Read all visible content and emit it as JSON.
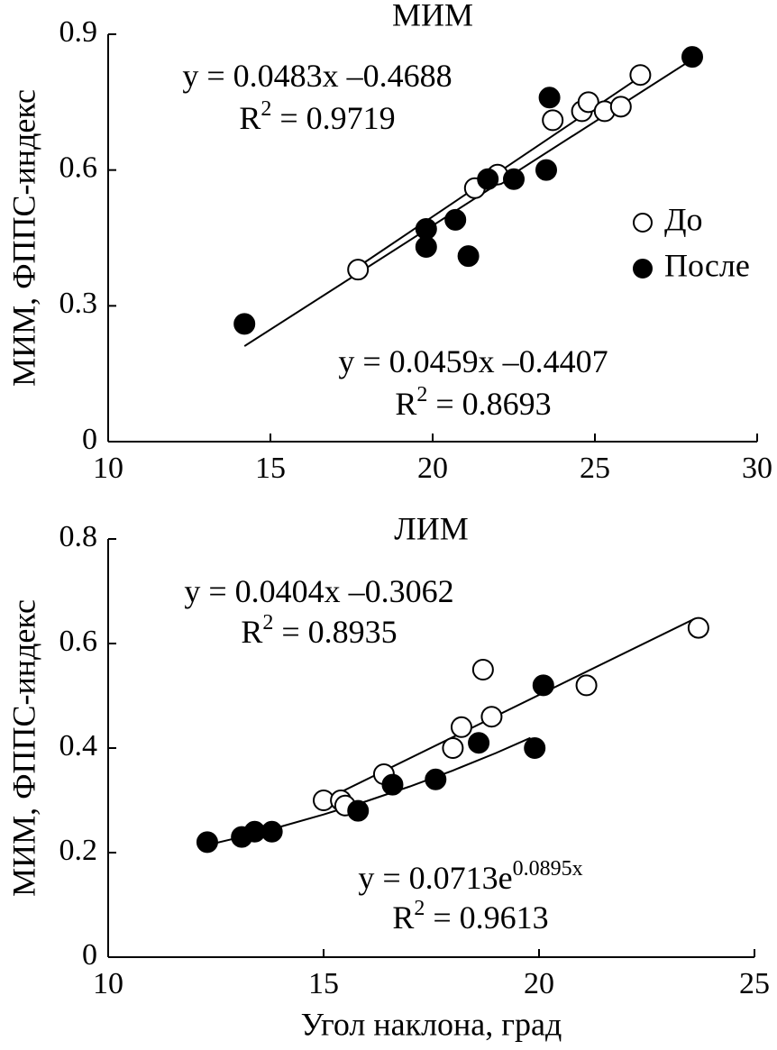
{
  "chart_data": [
    {
      "type": "scatter",
      "title": "МИМ",
      "ylabel": "МИМ, ФППС-индекс",
      "xlim": [
        10,
        30
      ],
      "xticks": [
        10,
        15,
        20,
        25,
        30
      ],
      "ylim": [
        0,
        0.9
      ],
      "yticks": [
        0,
        0.3,
        0.6,
        0.9
      ],
      "legend": true,
      "legend_position": "right",
      "series": [
        {
          "name": "До",
          "color": "#000000",
          "marker_fill": "#ffffff",
          "x": [
            17.7,
            21.3,
            22.0,
            23.7,
            24.6,
            24.8,
            25.3,
            25.8,
            26.4
          ],
          "values": [
            0.38,
            0.56,
            0.59,
            0.71,
            0.73,
            0.75,
            0.73,
            0.74,
            0.81
          ],
          "trend": {
            "x": [
              17.8,
              26.4
            ],
            "values": [
              0.391,
              0.806
            ]
          }
        },
        {
          "name": "После",
          "color": "#000000",
          "marker_fill": "#000000",
          "x": [
            14.2,
            19.8,
            19.8,
            20.7,
            21.1,
            21.7,
            22.5,
            23.5,
            23.6,
            28.0
          ],
          "values": [
            0.26,
            0.47,
            0.43,
            0.49,
            0.41,
            0.58,
            0.58,
            0.6,
            0.76,
            0.85
          ],
          "trend": {
            "x": [
              14.2,
              27.9
            ],
            "values": [
              0.211,
              0.84
            ]
          }
        }
      ],
      "annotations": [
        {
          "lines": [
            [
              {
                "text": "y = 0.0483x –0.4688"
              }
            ],
            [
              {
                "text": "R"
              },
              {
                "text": "2",
                "sup": true
              },
              {
                "text": " = 0.9719"
              }
            ]
          ]
        },
        {
          "lines": [
            [
              {
                "text": "y = 0.0459x –0.4407"
              }
            ],
            [
              {
                "text": "R"
              },
              {
                "text": "2",
                "sup": true
              },
              {
                "text": " = 0.8693"
              }
            ]
          ]
        }
      ]
    },
    {
      "type": "scatter",
      "title": "ЛИМ",
      "ylabel": "МИМ, ФППС-индекс",
      "xlabel": "Угол наклона, град",
      "xlim": [
        10,
        25
      ],
      "xticks": [
        10,
        15,
        20,
        25
      ],
      "ylim": [
        0,
        0.8
      ],
      "yticks": [
        0,
        0.2,
        0.4,
        0.6,
        0.8
      ],
      "legend": false,
      "series": [
        {
          "name": "До",
          "color": "#000000",
          "marker_fill": "#ffffff",
          "x": [
            15.0,
            15.4,
            15.5,
            16.4,
            18.0,
            18.2,
            18.7,
            18.9,
            21.1,
            23.7
          ],
          "values": [
            0.3,
            0.3,
            0.29,
            0.35,
            0.4,
            0.44,
            0.55,
            0.46,
            0.52,
            0.63
          ],
          "trend": {
            "x": [
              15.0,
              23.6
            ],
            "values": [
              0.2998,
              0.647
            ]
          }
        },
        {
          "name": "После",
          "color": "#000000",
          "marker_fill": "#000000",
          "x": [
            12.3,
            13.1,
            13.4,
            13.8,
            15.8,
            16.6,
            17.6,
            18.6,
            19.9,
            20.1
          ],
          "values": [
            0.22,
            0.23,
            0.24,
            0.24,
            0.28,
            0.33,
            0.34,
            0.41,
            0.4,
            0.52
          ],
          "trend": {
            "x": [
              12.3,
              13,
              14,
              15,
              16,
              17,
              18,
              19,
              19.8
            ],
            "values": [
              0.2144,
              0.2282,
              0.2496,
              0.2729,
              0.2985,
              0.3265,
              0.3571,
              0.3905,
              0.4195
            ]
          }
        }
      ],
      "annotations": [
        {
          "lines": [
            [
              {
                "text": "y = 0.0404x –0.3062"
              }
            ],
            [
              {
                "text": "R"
              },
              {
                "text": "2",
                "sup": true
              },
              {
                "text": " = 0.8935"
              }
            ]
          ]
        },
        {
          "lines": [
            [
              {
                "text": "y = 0.0713e"
              },
              {
                "text": "0.0895x",
                "sup": true
              }
            ],
            [
              {
                "text": "R"
              },
              {
                "text": "2",
                "sup": true
              },
              {
                "text": " = 0.9613"
              }
            ]
          ]
        }
      ]
    }
  ]
}
